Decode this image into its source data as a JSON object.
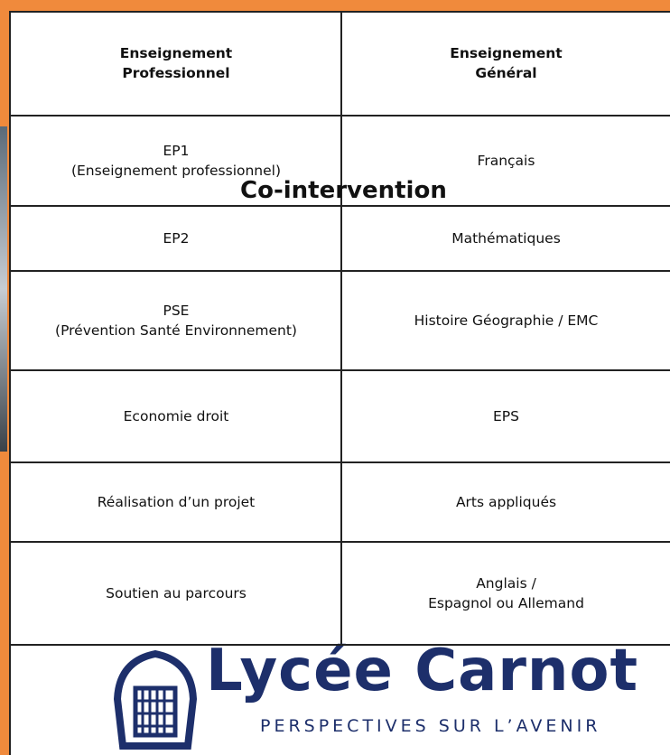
{
  "table": {
    "header": [
      [
        "Enseignement",
        "Professionnel"
      ],
      [
        "Enseignement",
        "Général"
      ]
    ],
    "rows": [
      [
        [
          "EP1",
          "(Enseignement professionnel)"
        ],
        [
          "Français"
        ]
      ],
      [
        [
          "EP2"
        ],
        [
          "Mathématiques"
        ]
      ],
      [
        [
          "PSE",
          "(Prévention Santé Environnement)"
        ],
        [
          "Histoire Géographie / EMC"
        ]
      ],
      [
        [
          "Economie droit"
        ],
        [
          "EPS"
        ]
      ],
      [
        [
          "Réalisation d’un projet"
        ],
        [
          "Arts appliqués"
        ]
      ],
      [
        [
          "Soutien au parcours"
        ],
        [
          "Anglais /",
          "Espagnol ou Allemand"
        ]
      ]
    ]
  },
  "overlay": "Co-intervention",
  "logo": {
    "name": "Lycée Carnot",
    "tagline": "PERSPECTIVES SUR L’AVENIR"
  }
}
